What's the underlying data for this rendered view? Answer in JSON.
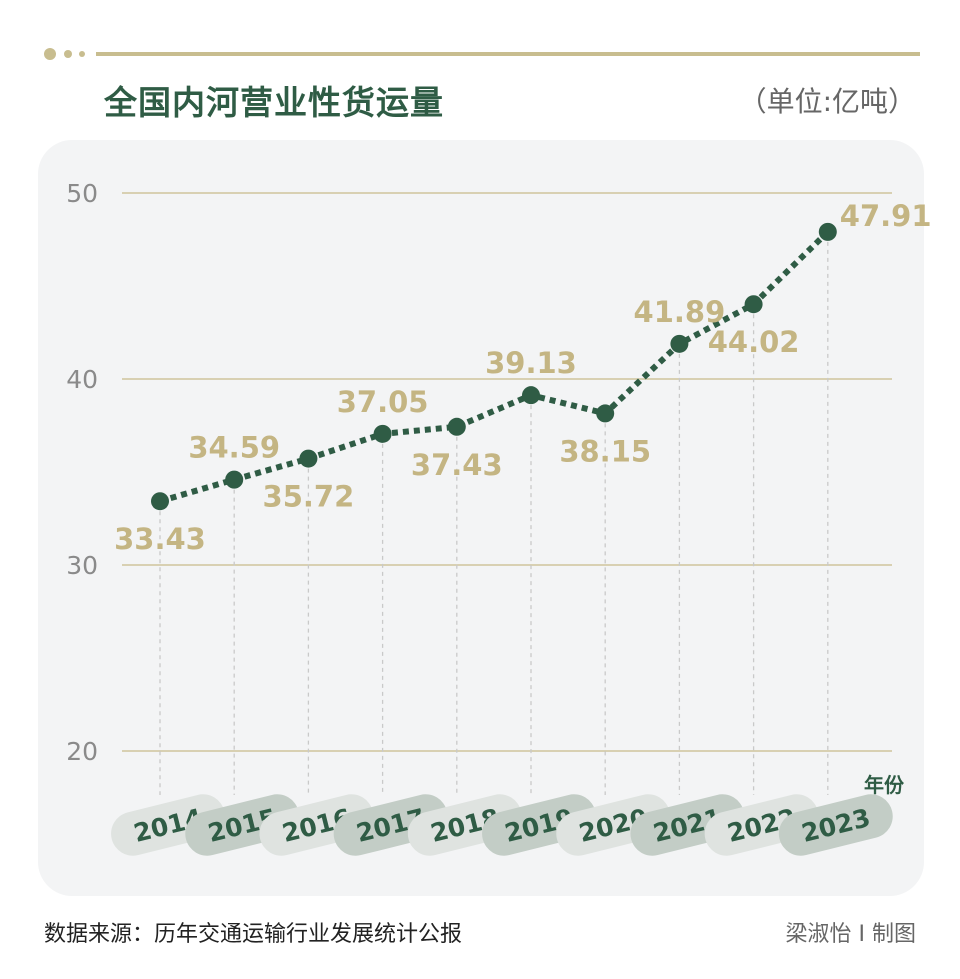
{
  "header": {
    "title": "全国内河营业性货运量",
    "unit": "（单位:亿吨）"
  },
  "footer": {
    "source": "数据来源：历年交通运输行业发展统计公报",
    "credit": "梁淑怡 I 制图"
  },
  "colors": {
    "line": "#2f5c45",
    "label": "#c4b583",
    "grid": "#cfc49c",
    "axis_text": "#8a8a8a",
    "pill_dark": "#c3cdc6",
    "pill_light": "#dfe3e0",
    "panel": "#f3f4f5"
  },
  "chart_data": {
    "type": "line",
    "title": "全国内河营业性货运量",
    "unit": "（单位:亿吨）",
    "xlabel": "年份",
    "ylabel": "",
    "categories": [
      "2014",
      "2015",
      "2016",
      "2017",
      "2018",
      "2019",
      "2020",
      "2021",
      "2022",
      "2023"
    ],
    "values": [
      33.43,
      34.59,
      35.72,
      37.05,
      37.43,
      39.13,
      38.15,
      41.89,
      44.02,
      47.91
    ],
    "label_position": [
      "below",
      "above",
      "below",
      "above",
      "below",
      "above",
      "below",
      "above",
      "below",
      "right"
    ],
    "ylim": [
      20,
      50
    ],
    "yticks": [
      20,
      30,
      40,
      50
    ],
    "grid": true,
    "line_style": "dotted",
    "legend": "none"
  }
}
